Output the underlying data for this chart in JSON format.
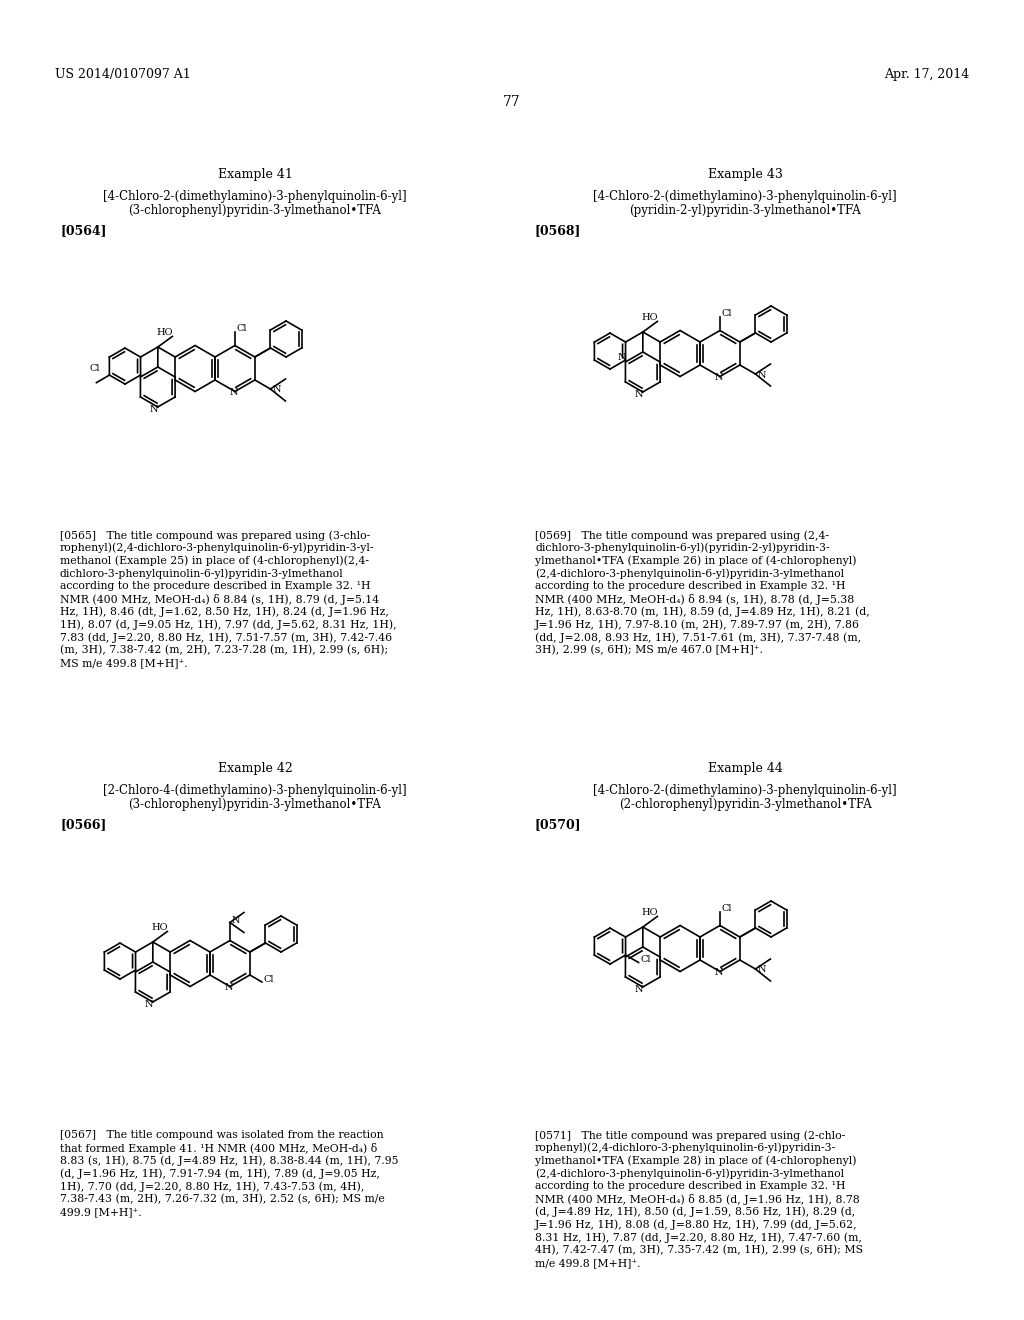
{
  "background_color": "#ffffff",
  "page_number": "77",
  "header_left": "US 2014/0107097 A1",
  "header_right": "Apr. 17, 2014",
  "example41_title": "Example 41",
  "example41_name_line1": "[4-Chloro-2-(dimethylamino)-3-phenylquinolin-6-yl]",
  "example41_name_line2": "(3-chlorophenyl)pyridin-3-ylmethanol•TFA",
  "example41_ref": "[0564]",
  "example41_body_lines": [
    "[0565]   The title compound was prepared using (3-chlo-",
    "rophenyl)(2,4-dichloro-3-phenylquinolin-6-yl)pyridin-3-yl-",
    "methanol (Example 25) in place of (4-chlorophenyl)(2,4-",
    "dichloro-3-phenylquinolin-6-yl)pyridin-3-ylmethanol",
    "according to the procedure described in Example 32. ¹H",
    "NMR (400 MHz, MeOH-d₄) δ 8.84 (s, 1H), 8.79 (d, J=5.14",
    "Hz, 1H), 8.46 (dt, J=1.62, 8.50 Hz, 1H), 8.24 (d, J=1.96 Hz,",
    "1H), 8.07 (d, J=9.05 Hz, 1H), 7.97 (dd, J=5.62, 8.31 Hz, 1H),",
    "7.83 (dd, J=2.20, 8.80 Hz, 1H), 7.51-7.57 (m, 3H), 7.42-7.46",
    "(m, 3H), 7.38-7.42 (m, 2H), 7.23-7.28 (m, 1H), 2.99 (s, 6H);",
    "MS m/e 499.8 [M+H]⁺."
  ],
  "example42_title": "Example 42",
  "example42_name_line1": "[2-Chloro-4-(dimethylamino)-3-phenylquinolin-6-yl]",
  "example42_name_line2": "(3-chlorophenyl)pyridin-3-ylmethanol•TFA",
  "example42_ref": "[0566]",
  "example42_body_lines": [
    "[0567]   The title compound was isolated from the reaction",
    "that formed Example 41. ¹H NMR (400 MHz, MeOH-d₄) δ",
    "8.83 (s, 1H), 8.75 (d, J=4.89 Hz, 1H), 8.38-8.44 (m, 1H), 7.95",
    "(d, J=1.96 Hz, 1H), 7.91-7.94 (m, 1H), 7.89 (d, J=9.05 Hz,",
    "1H), 7.70 (dd, J=2.20, 8.80 Hz, 1H), 7.43-7.53 (m, 4H),",
    "7.38-7.43 (m, 2H), 7.26-7.32 (m, 3H), 2.52 (s, 6H); MS m/e",
    "499.9 [M+H]⁺."
  ],
  "example43_title": "Example 43",
  "example43_name_line1": "[4-Chloro-2-(dimethylamino)-3-phenylquinolin-6-yl]",
  "example43_name_line2": "(pyridin-2-yl)pyridin-3-ylmethanol•TFA",
  "example43_ref": "[0568]",
  "example43_body_lines": [
    "[0569]   The title compound was prepared using (2,4-",
    "dichloro-3-phenylquinolin-6-yl)(pyridin-2-yl)pyridin-3-",
    "ylmethanol•TFA (Example 26) in place of (4-chlorophenyl)",
    "(2,4-dichloro-3-phenylquinolin-6-yl)pyridin-3-ylmethanol",
    "according to the procedure described in Example 32. ¹H",
    "NMR (400 MHz, MeOH-d₄) δ 8.94 (s, 1H), 8.78 (d, J=5.38",
    "Hz, 1H), 8.63-8.70 (m, 1H), 8.59 (d, J=4.89 Hz, 1H), 8.21 (d,",
    "J=1.96 Hz, 1H), 7.97-8.10 (m, 2H), 7.89-7.97 (m, 2H), 7.86",
    "(dd, J=2.08, 8.93 Hz, 1H), 7.51-7.61 (m, 3H), 7.37-7.48 (m,",
    "3H), 2.99 (s, 6H); MS m/e 467.0 [M+H]⁺."
  ],
  "example44_title": "Example 44",
  "example44_name_line1": "[4-Chloro-2-(dimethylamino)-3-phenylquinolin-6-yl]",
  "example44_name_line2": "(2-chlorophenyl)pyridin-3-ylmethanol•TFA",
  "example44_ref": "[0570]",
  "example44_body_lines": [
    "[0571]   The title compound was prepared using (2-chlo-",
    "rophenyl)(2,4-dichloro-3-phenylquinolin-6-yl)pyridin-3-",
    "ylmethanol•TFA (Example 28) in place of (4-chlorophenyl)",
    "(2,4-dichloro-3-phenylquinolin-6-yl)pyridin-3-ylmethanol",
    "according to the procedure described in Example 32. ¹H",
    "NMR (400 MHz, MeOH-d₄) δ 8.85 (d, J=1.96 Hz, 1H), 8.78",
    "(d, J=4.89 Hz, 1H), 8.50 (d, J=1.59, 8.56 Hz, 1H), 8.29 (d,",
    "J=1.96 Hz, 1H), 8.08 (d, J=8.80 Hz, 1H), 7.99 (dd, J=5.62,",
    "8.31 Hz, 1H), 7.87 (dd, J=2.20, 8.80 Hz, 1H), 7.47-7.60 (m,",
    "4H), 7.42-7.47 (m, 3H), 7.35-7.42 (m, 1H), 2.99 (s, 6H); MS",
    "m/e 499.8 [M+H]⁺."
  ]
}
